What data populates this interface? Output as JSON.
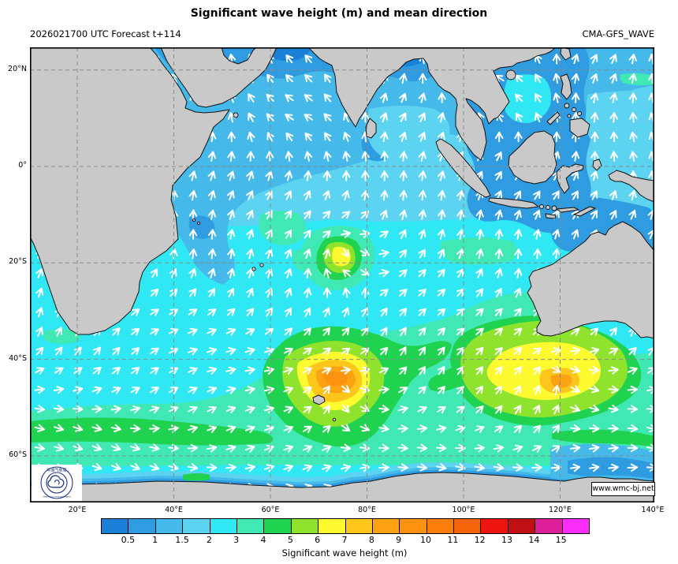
{
  "header": {
    "title": "Significant wave height (m) and mean direction",
    "left": "2026021700 UTC Forecast t+114",
    "right": "CMA-GFS_WAVE"
  },
  "axes": {
    "lon_ticks": [
      {
        "label": "20°E",
        "deg": 20
      },
      {
        "label": "40°E",
        "deg": 40
      },
      {
        "label": "60°E",
        "deg": 60
      },
      {
        "label": "80°E",
        "deg": 80
      },
      {
        "label": "100°E",
        "deg": 100
      },
      {
        "label": "120°E",
        "deg": 120
      },
      {
        "label": "140°E",
        "deg": 140
      }
    ],
    "lat_ticks": [
      {
        "label": "20°N",
        "deg": 20
      },
      {
        "label": "0°",
        "deg": 0
      },
      {
        "label": "20°S",
        "deg": -20
      },
      {
        "label": "40°S",
        "deg": -40
      },
      {
        "label": "60°S",
        "deg": -60
      }
    ]
  },
  "colorbar": {
    "caption": "Significant wave height (m)",
    "levels": [
      "0.5",
      "1",
      "1.5",
      "2",
      "3",
      "4",
      "5",
      "6",
      "7",
      "8",
      "9",
      "10",
      "11",
      "12",
      "13",
      "14",
      "15"
    ],
    "colors": [
      "#1b80d8",
      "#2f9ce2",
      "#45baea",
      "#5cd3f0",
      "#30e7f4",
      "#40e8b3",
      "#1fd24f",
      "#8fe32c",
      "#fdfb30",
      "#fec51b",
      "#fda313",
      "#fd9210",
      "#fb7e0d",
      "#f5650a",
      "#ee1410",
      "#c11014",
      "#dd1f99",
      "#fb2dfb"
    ]
  },
  "map": {
    "land_color": "#c9c9c9",
    "coast_color": "#111111",
    "grid_color": "#8a8a8a",
    "arrow_color": "#ffffff",
    "border_color": "#000000"
  },
  "watermark": "www.wmc-bj.net",
  "logo": {
    "ring_top": "中国气象局",
    "ring_bottom": "CHINA METEOROLOGICAL ADMINISTRATION"
  },
  "chart_data": {
    "type": "heatmap",
    "title": "Significant wave height (m) and mean direction",
    "model": "CMA-GFS_WAVE",
    "init_and_lead": "2026021700 UTC Forecast t+114",
    "units": "m",
    "x": {
      "label": "longitude",
      "range_deg_east": [
        10,
        140
      ],
      "ticks": [
        "20°E",
        "40°E",
        "60°E",
        "80°E",
        "100°E",
        "120°E",
        "140°E"
      ]
    },
    "y": {
      "label": "latitude",
      "range_deg_north": [
        -70,
        25
      ],
      "ticks": [
        "20°N",
        "0°",
        "20°S",
        "40°S",
        "60°S"
      ]
    },
    "colorbar": {
      "label": "Significant wave height (m)",
      "levels_m": [
        0.5,
        1,
        1.5,
        2,
        3,
        4,
        5,
        6,
        7,
        8,
        9,
        10,
        11,
        12,
        13,
        14,
        15
      ],
      "colors": [
        "#1b80d8",
        "#2f9ce2",
        "#45baea",
        "#5cd3f0",
        "#30e7f4",
        "#40e8b3",
        "#1fd24f",
        "#8fe32c",
        "#fdfb30",
        "#fec51b",
        "#fda313",
        "#fd9210",
        "#fb7e0d",
        "#f5650a",
        "#ee1410",
        "#c11014",
        "#dd1f99",
        "#fb2dfb"
      ]
    },
    "vector_overlay": "mean wave direction shown as white arrows on a regular grid",
    "grid": "dashed graticule every 20 degrees",
    "features": [
      {
        "name": "tropical cyclone swell ring",
        "lon_e": 67,
        "lat_n": -18.5,
        "max_hs_m": 7
      },
      {
        "name": "Southern Ocean storm near Kerguelen",
        "lon_e": 68,
        "lat_n": -46,
        "max_hs_m": 10
      },
      {
        "name": "Southern Ocean storm south of Australia",
        "lon_e": 117,
        "lat_n": -45,
        "max_hs_m": 8
      }
    ],
    "regional_values": [
      {
        "region": "Arabian Sea / Bay of Bengal",
        "hs_m": "0.5-1.5"
      },
      {
        "region": "equatorial Indian Ocean",
        "hs_m": "1.5-2"
      },
      {
        "region": "subtropical Indian Ocean 10-35S",
        "hs_m": "2-3"
      },
      {
        "region": "Indonesian seas",
        "hs_m": "0.5-1"
      },
      {
        "region": "mid-latitudes 35-50S",
        "hs_m": "3-5"
      },
      {
        "region": "circumpolar belt 50-58S",
        "hs_m": "4-5"
      },
      {
        "region": "near Antarctica",
        "hs_m": "1-2"
      }
    ]
  }
}
